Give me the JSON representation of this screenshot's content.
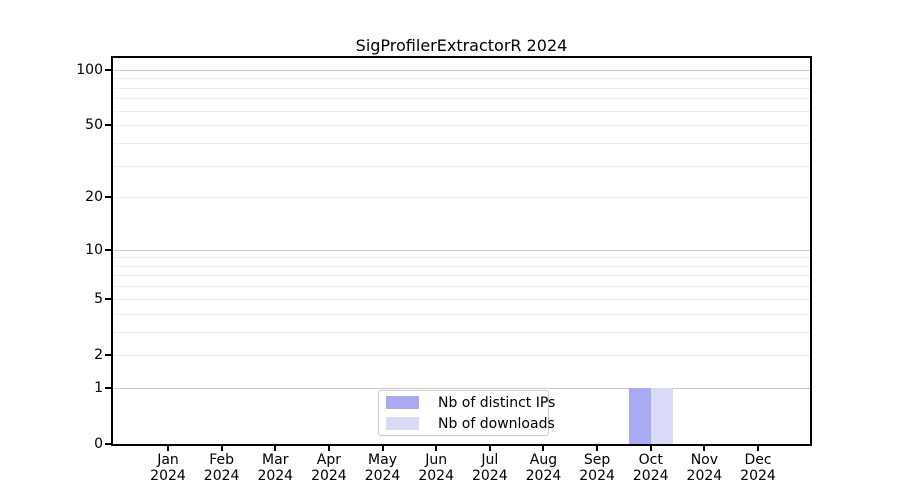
{
  "chart_data": {
    "type": "bar",
    "title": "SigProfilerExtractorR 2024",
    "categories": [
      "Jan",
      "Feb",
      "Mar",
      "Apr",
      "May",
      "Jun",
      "Jul",
      "Aug",
      "Sep",
      "Oct",
      "Nov",
      "Dec"
    ],
    "x_tick_second_line": "2024",
    "series": [
      {
        "name": "Nb of distinct IPs",
        "color": "#aaaaf2",
        "values": [
          0,
          0,
          0,
          0,
          0,
          0,
          0,
          0,
          0,
          1,
          0,
          0
        ]
      },
      {
        "name": "Nb of downloads",
        "color": "#d9d9f8",
        "values": [
          0,
          0,
          0,
          0,
          0,
          0,
          0,
          0,
          0,
          1,
          0,
          0
        ]
      }
    ],
    "yscale": "log1p",
    "ylim": [
      0,
      116
    ],
    "yticks": [
      100,
      50,
      20,
      10,
      5,
      2,
      1,
      0
    ],
    "y_major_gridlines": [
      1,
      10,
      100
    ],
    "y_minor_gridlines": [
      2,
      3,
      4,
      5,
      6,
      7,
      8,
      9,
      20,
      30,
      40,
      50,
      60,
      70,
      80,
      90
    ],
    "grid": "horizontal",
    "legend_position": "lower center",
    "colors": {
      "spine": "#000000",
      "grid_major": "#c9c9c9",
      "grid_minor": "#ececec",
      "text": "#000000",
      "legend_border": "#cccccc"
    }
  }
}
